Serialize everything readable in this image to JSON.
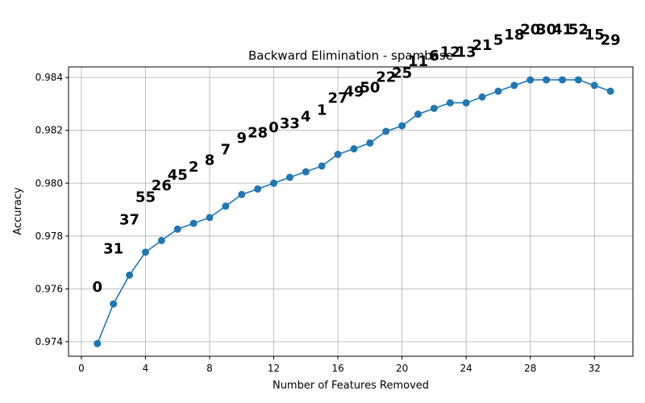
{
  "chart_data": {
    "type": "line",
    "title": "Backward Elimination - spambase",
    "xlabel": "Number of Features Removed",
    "ylabel": "Accuracy",
    "xlim": [
      -0.8,
      34.4
    ],
    "ylim": [
      0.97345,
      0.9844
    ],
    "xticks": [
      "0",
      "4",
      "8",
      "12",
      "16",
      "20",
      "24",
      "28",
      "32"
    ],
    "yticks": [
      "0.974",
      "0.976",
      "0.978",
      "0.980",
      "0.982",
      "0.984"
    ],
    "grid": true,
    "line_color": "#1f77b4",
    "series": [
      {
        "x": [
          1,
          2,
          3,
          4,
          5,
          6,
          7,
          8,
          9,
          10,
          11,
          12,
          13,
          14,
          15,
          16,
          17,
          18,
          19,
          20,
          21,
          22,
          23,
          24,
          25,
          26,
          27,
          28,
          29,
          30,
          31,
          32,
          33
        ],
        "values": [
          0.97393,
          0.97543,
          0.97652,
          0.97739,
          0.97783,
          0.97826,
          0.97848,
          0.9787,
          0.97913,
          0.97957,
          0.97978,
          0.98,
          0.98022,
          0.98043,
          0.98065,
          0.98109,
          0.9813,
          0.98152,
          0.98196,
          0.98217,
          0.98261,
          0.98283,
          0.98304,
          0.98304,
          0.98326,
          0.98348,
          0.9837,
          0.98391,
          0.98391,
          0.98391,
          0.98391,
          0.9837,
          0.98348
        ]
      }
    ],
    "point_labels": [
      "0",
      "31",
      "37",
      "55",
      "26",
      "45",
      "2",
      "8",
      "7",
      "9",
      "28",
      "0",
      "33",
      "4",
      "1",
      "27",
      "49",
      "50",
      "22",
      "25",
      "11",
      "6",
      "12",
      "13",
      "21",
      "5",
      "18",
      "20",
      "30",
      "41",
      "52",
      "15",
      "29"
    ],
    "point_label_y": [
      0.9761,
      0.97755,
      0.97865,
      0.9795,
      0.97995,
      0.98035,
      0.98065,
      0.9809,
      0.9813,
      0.98175,
      0.98195,
      0.98215,
      0.9823,
      0.98255,
      0.9828,
      0.98325,
      0.9835,
      0.98365,
      0.98405,
      0.9842,
      0.98465,
      0.98485,
      0.985,
      0.985,
      0.98525,
      0.98545,
      0.98565,
      0.98585,
      0.98585,
      0.98585,
      0.98585,
      0.98565,
      0.98545
    ]
  }
}
